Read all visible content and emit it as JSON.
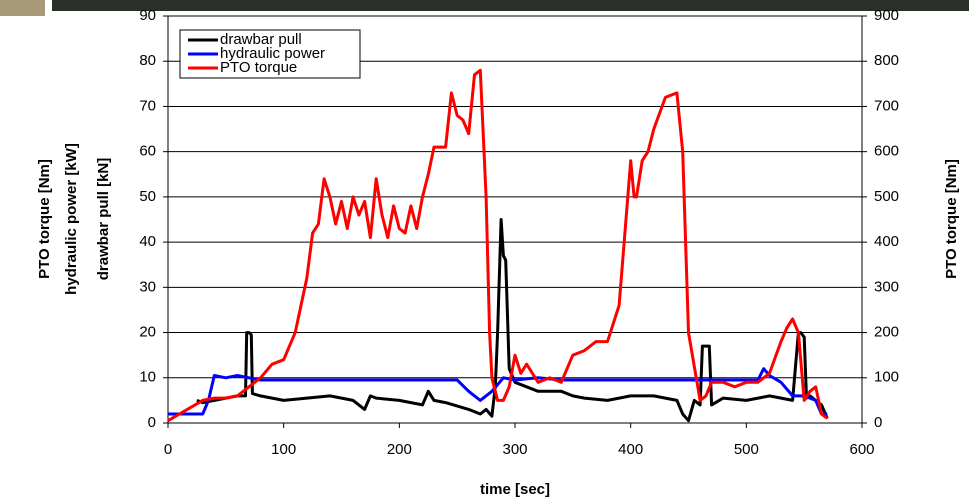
{
  "chart_data": {
    "type": "line",
    "xlabel": "time [sec]",
    "ylabels": [
      {
        "text": "PTO torque [Nm]",
        "color": "#000000"
      },
      {
        "text": "hydraulic power [kW]",
        "color": "#0000ff"
      },
      {
        "text": "drawbar pull [kN]",
        "color": "#000000"
      }
    ],
    "y2label": "PTO torque [Nm]",
    "xlim": [
      0,
      600
    ],
    "xticks": [
      0,
      100,
      200,
      300,
      400,
      500,
      600
    ],
    "ylim": [
      0,
      90
    ],
    "yticks": [
      0,
      10,
      20,
      30,
      40,
      50,
      60,
      70,
      80,
      90
    ],
    "y2lim": [
      0,
      900
    ],
    "y2ticks": [
      0,
      100,
      200,
      300,
      400,
      500,
      600,
      700,
      800,
      900
    ],
    "grid": true,
    "legend": "upper left",
    "series": [
      {
        "name": "drawbar pull",
        "color": "#000000",
        "x": [
          25,
          30,
          40,
          50,
          60,
          67,
          68,
          70,
          72,
          73,
          80,
          100,
          120,
          140,
          160,
          170,
          175,
          180,
          200,
          220,
          225,
          230,
          240,
          260,
          270,
          275,
          280,
          283,
          285,
          288,
          290,
          292,
          295,
          300,
          310,
          320,
          340,
          350,
          360,
          380,
          400,
          420,
          440,
          445,
          450,
          455,
          460,
          462,
          465,
          468,
          470,
          480,
          500,
          520,
          540,
          545,
          547,
          550,
          552,
          555,
          560,
          565,
          570
        ],
        "values": [
          5,
          4.5,
          5,
          5.5,
          6,
          6,
          20,
          20,
          19.5,
          6.5,
          6,
          5,
          5.5,
          6,
          5,
          3,
          6,
          5.5,
          5,
          4,
          7,
          5,
          4.5,
          3,
          2,
          3,
          1.5,
          8,
          20,
          45,
          37,
          36,
          12,
          9,
          8,
          7,
          7,
          6,
          5.5,
          5,
          6,
          6,
          5,
          2,
          0.5,
          5,
          4,
          17,
          17,
          17,
          4,
          5.5,
          5,
          6,
          5,
          20,
          20,
          19,
          5.5,
          6,
          5,
          4,
          1
        ]
      },
      {
        "name": "hydraulic power",
        "color": "#0000ff",
        "x": [
          0,
          25,
          30,
          35,
          40,
          50,
          60,
          70,
          80,
          100,
          150,
          200,
          250,
          260,
          270,
          280,
          290,
          300,
          320,
          340,
          400,
          450,
          500,
          510,
          515,
          520,
          530,
          540,
          550,
          560,
          565,
          570
        ],
        "values": [
          2,
          2,
          2,
          5,
          10.5,
          10,
          10.5,
          10,
          9.5,
          9.5,
          9.5,
          9.5,
          9.5,
          7,
          5,
          7,
          10,
          9.5,
          10,
          9.5,
          9.5,
          9.5,
          9.5,
          9.5,
          12,
          10.5,
          9,
          6,
          6,
          5,
          2,
          2
        ]
      },
      {
        "name": "PTO torque",
        "color": "#ff0000",
        "axis": "y2",
        "x": [
          0,
          30,
          40,
          50,
          60,
          70,
          80,
          90,
          100,
          110,
          120,
          125,
          130,
          135,
          140,
          145,
          150,
          155,
          160,
          165,
          170,
          175,
          180,
          185,
          190,
          195,
          200,
          205,
          210,
          215,
          220,
          225,
          230,
          240,
          245,
          250,
          255,
          260,
          265,
          270,
          275,
          278,
          280,
          285,
          290,
          295,
          300,
          305,
          310,
          320,
          330,
          340,
          350,
          360,
          370,
          380,
          390,
          400,
          403,
          405,
          410,
          415,
          420,
          430,
          440,
          445,
          450,
          460,
          465,
          470,
          480,
          490,
          500,
          510,
          520,
          530,
          535,
          540,
          545,
          550,
          555,
          560,
          565,
          570
        ],
        "values": [
          5,
          50,
          55,
          55,
          60,
          80,
          100,
          130,
          140,
          200,
          320,
          420,
          440,
          540,
          500,
          440,
          490,
          430,
          500,
          460,
          490,
          410,
          540,
          460,
          410,
          480,
          430,
          420,
          480,
          430,
          500,
          550,
          610,
          610,
          730,
          680,
          670,
          640,
          770,
          780,
          500,
          200,
          100,
          50,
          50,
          80,
          150,
          110,
          130,
          90,
          100,
          90,
          150,
          160,
          180,
          180,
          260,
          580,
          500,
          500,
          580,
          600,
          650,
          720,
          730,
          600,
          200,
          50,
          60,
          90,
          90,
          80,
          90,
          90,
          110,
          180,
          210,
          230,
          200,
          50,
          70,
          80,
          20,
          10
        ]
      }
    ]
  }
}
